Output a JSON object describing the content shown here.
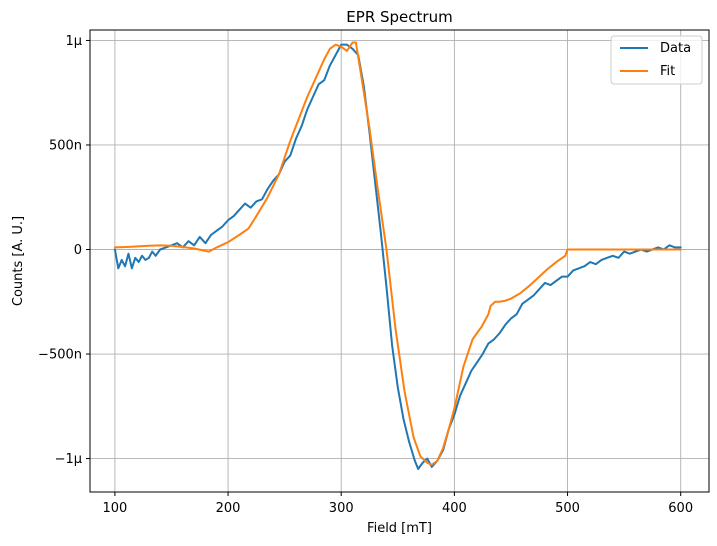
{
  "chart_data": {
    "type": "line",
    "title": "EPR Spectrum",
    "xlabel": "Field [mT]",
    "ylabel": "Counts [A. U.]",
    "xlim": [
      78,
      625
    ],
    "ylim": [
      -1.16e-06,
      1.05e-06
    ],
    "xticks": [
      100,
      200,
      300,
      400,
      500,
      600
    ],
    "xtick_labels": [
      "100",
      "200",
      "300",
      "400",
      "500",
      "600"
    ],
    "yticks": [
      1e-06,
      5e-07,
      0,
      -5e-07,
      -1e-06
    ],
    "ytick_labels": [
      "1μ",
      "500n",
      "0",
      "−500n",
      "−1μ"
    ],
    "grid": true,
    "legend_position": "top-right",
    "series": [
      {
        "name": "Data",
        "color": "#1f77b4",
        "x": [
          100,
          103,
          106,
          109,
          112,
          115,
          118,
          121,
          124,
          127,
          130,
          133,
          136,
          140,
          145,
          150,
          155,
          160,
          165,
          170,
          175,
          180,
          185,
          190,
          195,
          200,
          205,
          210,
          215,
          220,
          225,
          230,
          235,
          240,
          245,
          250,
          255,
          260,
          265,
          270,
          275,
          280,
          285,
          290,
          295,
          300,
          305,
          310,
          315,
          320,
          325,
          330,
          335,
          340,
          345,
          350,
          355,
          360,
          365,
          368,
          372,
          376,
          380,
          385,
          390,
          395,
          400,
          405,
          410,
          415,
          420,
          425,
          430,
          435,
          440,
          445,
          450,
          455,
          460,
          465,
          470,
          475,
          480,
          485,
          490,
          495,
          500,
          505,
          510,
          515,
          520,
          525,
          530,
          535,
          540,
          545,
          550,
          555,
          560,
          565,
          570,
          575,
          580,
          585,
          590,
          595,
          600
        ],
        "y": [
          0,
          -9e-08,
          -5e-08,
          -8e-08,
          -2e-08,
          -9e-08,
          -4e-08,
          -6e-08,
          -3e-08,
          -5e-08,
          -4e-08,
          -1e-08,
          -3e-08,
          0,
          1e-08,
          2e-08,
          3e-08,
          1e-08,
          4e-08,
          2e-08,
          6e-08,
          3e-08,
          7e-08,
          9e-08,
          1.1e-07,
          1.4e-07,
          1.6e-07,
          1.9e-07,
          2.2e-07,
          2e-07,
          2.3e-07,
          2.4e-07,
          2.9e-07,
          3.3e-07,
          3.6e-07,
          4.2e-07,
          4.5e-07,
          5.3e-07,
          5.9e-07,
          6.7e-07,
          7.3e-07,
          7.9e-07,
          8.1e-07,
          8.8e-07,
          9.3e-07,
          9.8e-07,
          9.8e-07,
          9.6e-07,
          9.3e-07,
          7.8e-07,
          5.6e-07,
          3.2e-07,
          8e-08,
          -1.8e-07,
          -4.6e-07,
          -6.6e-07,
          -8.1e-07,
          -9.2e-07,
          -1.01e-06,
          -1.05e-06,
          -1.02e-06,
          -1e-06,
          -1.04e-06,
          -1.01e-06,
          -9.6e-07,
          -8.6e-07,
          -7.9e-07,
          -7e-07,
          -6.4e-07,
          -5.8e-07,
          -5.4e-07,
          -5e-07,
          -4.5e-07,
          -4.3e-07,
          -4e-07,
          -3.6e-07,
          -3.3e-07,
          -3.1e-07,
          -2.6e-07,
          -2.4e-07,
          -2.2e-07,
          -1.9e-07,
          -1.6e-07,
          -1.7e-07,
          -1.5e-07,
          -1.3e-07,
          -1.3e-07,
          -1e-07,
          -9e-08,
          -8e-08,
          -6e-08,
          -7e-08,
          -5e-08,
          -4e-08,
          -3e-08,
          -4e-08,
          -1e-08,
          -2e-08,
          -1e-08,
          0,
          -1e-08,
          0,
          1e-08,
          0,
          2e-08,
          1e-08,
          1e-08
        ]
      },
      {
        "name": "Fit",
        "color": "#ff7f0e",
        "x": [
          100,
          110,
          120,
          130,
          140,
          150,
          160,
          170,
          183,
          190,
          200,
          210,
          218,
          225,
          235,
          245,
          255,
          260,
          265,
          270,
          275,
          280,
          285,
          290,
          295,
          300,
          305,
          310,
          313,
          318,
          325,
          332,
          340,
          348,
          356,
          364,
          370,
          376,
          380,
          385,
          390,
          395,
          400,
          408,
          416,
          424,
          430,
          432,
          436,
          440,
          445,
          450,
          458,
          466,
          474,
          482,
          490,
          498,
          500,
          510,
          520,
          540,
          560,
          580,
          600
        ],
        "y": [
          1e-08,
          1.2e-08,
          1.5e-08,
          1.8e-08,
          2e-08,
          1.8e-08,
          1.2e-08,
          5e-09,
          -1e-08,
          1e-08,
          3.5e-08,
          7e-08,
          1e-07,
          1.6e-07,
          2.5e-07,
          3.6e-07,
          5.2e-07,
          5.9e-07,
          6.6e-07,
          7.3e-07,
          7.9e-07,
          8.5e-07,
          9.1e-07,
          9.6e-07,
          9.8e-07,
          9.7e-07,
          9.5e-07,
          9.9e-07,
          9.9e-07,
          8.2e-07,
          5.8e-07,
          3e-07,
          0,
          -3.8e-07,
          -6.8e-07,
          -9e-07,
          -9.9e-07,
          -1.02e-06,
          -1.03e-06,
          -1.01e-06,
          -9.5e-07,
          -8.6e-07,
          -7.6e-07,
          -5.6e-07,
          -4.3e-07,
          -3.7e-07,
          -3.1e-07,
          -2.7e-07,
          -2.5e-07,
          -2.5e-07,
          -2.45e-07,
          -2.35e-07,
          -2.1e-07,
          -1.75e-07,
          -1.35e-07,
          -9.5e-08,
          -6e-08,
          -3e-08,
          0,
          0,
          0,
          0,
          0,
          0,
          0
        ]
      }
    ]
  }
}
